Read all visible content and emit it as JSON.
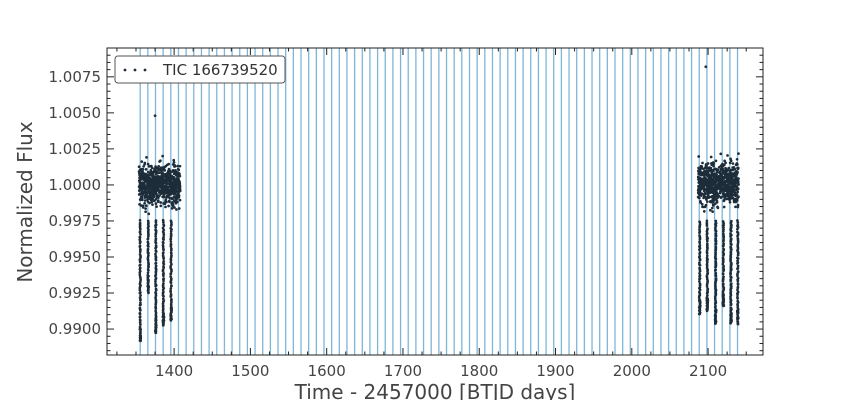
{
  "chart_data": {
    "type": "scatter",
    "xlabel": "Time - 2457000 [BTJD days]",
    "ylabel": "Normalized Flux",
    "xlim": [
      1312,
      2172
    ],
    "ylim": [
      0.9882,
      1.0095
    ],
    "x_ticks": [
      1400,
      1500,
      1600,
      1700,
      1800,
      1900,
      2000,
      2100
    ],
    "x_tick_labels": [
      "1400",
      "1500",
      "1600",
      "1700",
      "1800",
      "1900",
      "2000",
      "2100"
    ],
    "y_ticks": [
      0.99,
      0.9925,
      0.995,
      0.9975,
      1.0,
      1.0025,
      1.005,
      1.0075
    ],
    "y_tick_labels": [
      "0.9900",
      "0.9925",
      "0.9950",
      "0.9975",
      "1.0000",
      "1.0025",
      "1.0050",
      "1.0075"
    ],
    "legend": {
      "label": "TIC 166739520",
      "placement": "top-left"
    },
    "grid": false,
    "series": [
      {
        "name": "TIC 166739520",
        "marker": "dot",
        "color": "#1e2d3a",
        "data_blocks": [
          {
            "x_range": [
              1354,
              1381
            ],
            "core_range": [
              0.9972,
              1.0028
            ]
          },
          {
            "x_range": [
              1382,
              1408
            ],
            "core_range": [
              0.9972,
              1.0028
            ]
          },
          {
            "x_range": [
              2087,
              2113
            ],
            "core_range": [
              0.9972,
              1.003
            ]
          },
          {
            "x_range": [
              2114,
              2140
            ],
            "core_range": [
              0.9972,
              1.003
            ]
          }
        ],
        "transit_dips": [
          {
            "x": 1355.5,
            "min": 0.9892
          },
          {
            "x": 1366,
            "min": 0.9925
          },
          {
            "x": 1376,
            "min": 0.9897
          },
          {
            "x": 1386,
            "min": 0.9902
          },
          {
            "x": 1396,
            "min": 0.9906
          },
          {
            "x": 2089,
            "min": 0.991
          },
          {
            "x": 2099,
            "min": 0.9912
          },
          {
            "x": 2110,
            "min": 0.9903
          },
          {
            "x": 2120,
            "min": 0.9915
          },
          {
            "x": 2130,
            "min": 0.9904
          },
          {
            "x": 2139,
            "min": 0.9903
          }
        ],
        "outliers": [
          {
            "x": 1375,
            "y": 1.0048
          },
          {
            "x": 2097,
            "y": 1.0082
          }
        ]
      }
    ],
    "vertical_lines": {
      "color": "#7fb6d6",
      "first_x": 1355.5,
      "period": 10.04,
      "last_x": 2140
    }
  }
}
